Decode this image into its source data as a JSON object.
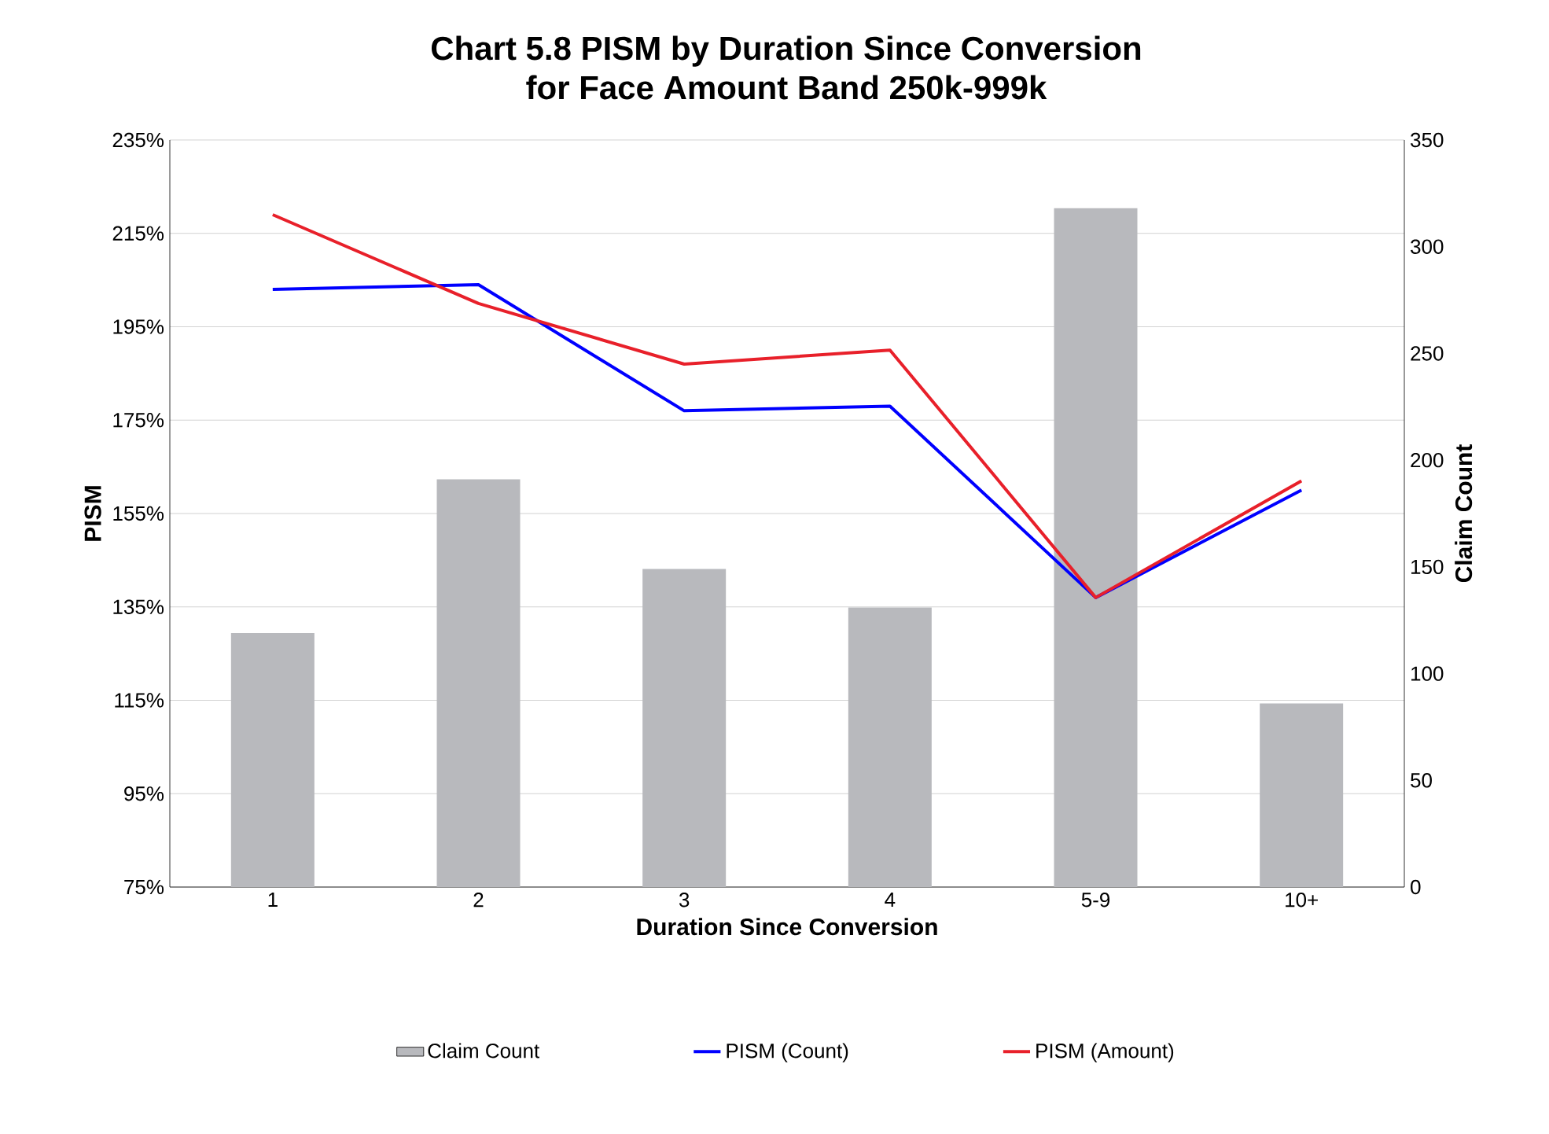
{
  "chart_data": {
    "type": "line",
    "title": "Chart 5.8 PISM by Duration Since Conversion\nfor Face Amount Band 250k-999k",
    "categories": [
      "1",
      "2",
      "3",
      "4",
      "5-9",
      "10+"
    ],
    "xlabel": "Duration Since Conversion",
    "ylabel": "PISM",
    "y2label": "Claim Count",
    "series": [
      {
        "name": "Claim Count",
        "type": "bar",
        "axis": "y2",
        "color": "#b8b9bd",
        "values": [
          119,
          191,
          149,
          131,
          318,
          86
        ]
      },
      {
        "name": "PISM (Count)",
        "color": "#0000ff",
        "values": [
          203,
          204,
          177,
          178,
          137,
          160
        ]
      },
      {
        "name": "PISM (Amount)",
        "color": "#e8202a",
        "values": [
          219,
          200,
          187,
          190,
          137,
          162
        ]
      }
    ],
    "ylim": [
      75,
      235
    ],
    "yticks": [
      {
        "value": 75,
        "label": "75%"
      },
      {
        "value": 95,
        "label": "95%"
      },
      {
        "value": 115,
        "label": "115%"
      },
      {
        "value": 135,
        "label": "135%"
      },
      {
        "value": 155,
        "label": "155%"
      },
      {
        "value": 175,
        "label": "175%"
      },
      {
        "value": 195,
        "label": "195%"
      },
      {
        "value": 215,
        "label": "215%"
      },
      {
        "value": 235,
        "label": "235%"
      }
    ],
    "y2lim": [
      0,
      350
    ],
    "y2ticks": [
      0,
      50,
      100,
      150,
      200,
      250,
      300,
      350
    ],
    "grid": "y",
    "legend": "bottom",
    "line_style": "solid"
  }
}
